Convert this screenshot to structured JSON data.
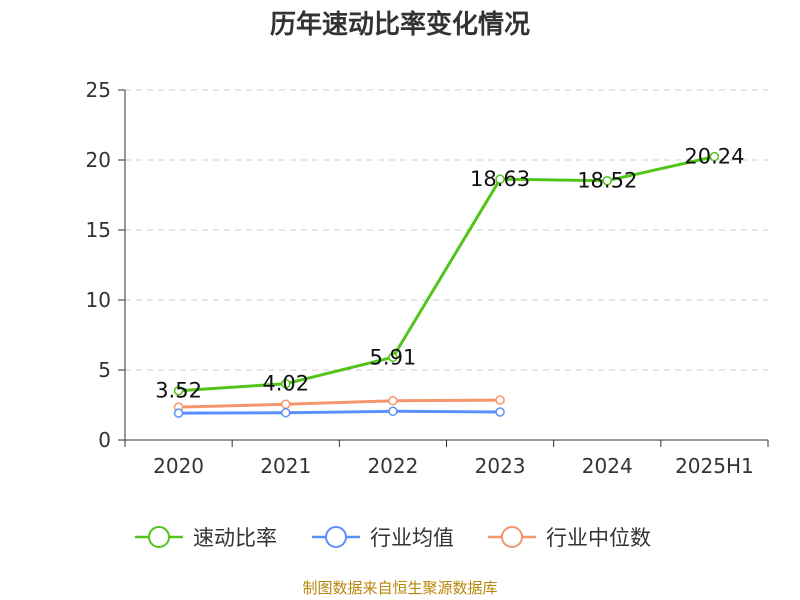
{
  "chart_data": {
    "type": "line",
    "title": "历年速动比率变化情况",
    "categories": [
      "2020",
      "2021",
      "2022",
      "2023",
      "2024",
      "2025H1"
    ],
    "y_ticks": [
      "0",
      "5",
      "10",
      "15",
      "20",
      "25"
    ],
    "ylim": [
      0,
      25
    ],
    "grid": true,
    "legend_position": "bottom",
    "series": [
      {
        "name": "速动比率",
        "color": "#52c41a",
        "values": [
          3.52,
          4.02,
          5.91,
          18.63,
          18.52,
          20.24
        ],
        "labels": [
          "3.52",
          "4.02",
          "5.91",
          "18.63",
          "18.52",
          "20.24"
        ]
      },
      {
        "name": "行业均值",
        "color": "#5b8ff9",
        "values": [
          1.92,
          1.95,
          2.05,
          2.0,
          null,
          null
        ]
      },
      {
        "name": "行业中位数",
        "color": "#f6946b",
        "values": [
          2.35,
          2.55,
          2.8,
          2.85,
          null,
          null
        ]
      }
    ]
  },
  "footer": "制图数据来自恒生聚源数据库"
}
